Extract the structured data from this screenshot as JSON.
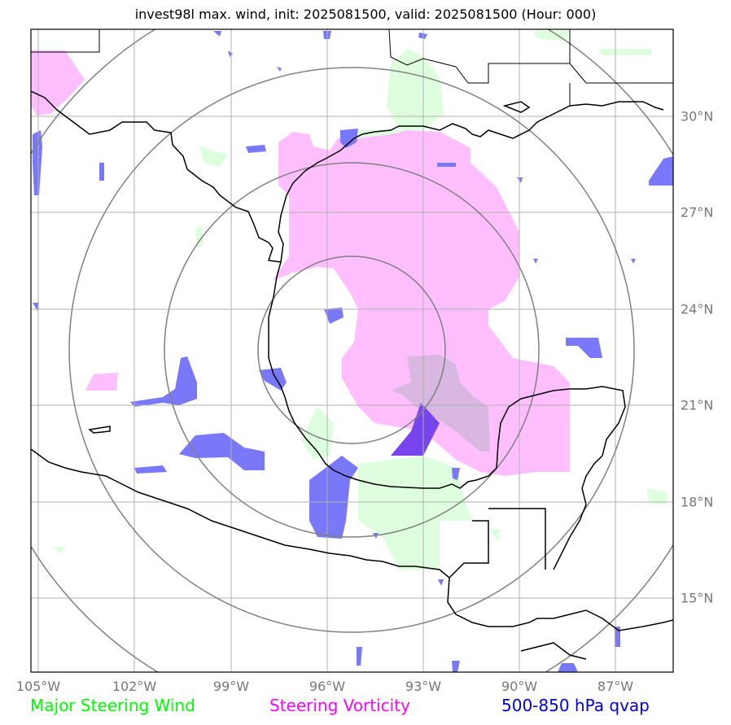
{
  "title": "invest98l max. wind, init: 2025081500, valid: 2025081500 (Hour: 000)",
  "map": {
    "lon_labels": [
      "105°W",
      "102°W",
      "99°W",
      "96°W",
      "93°W",
      "90°W",
      "87°W"
    ],
    "lat_labels": [
      "30°N",
      "27°N",
      "24°N",
      "21°N",
      "18°N",
      "15°N"
    ],
    "colors": {
      "grid": "#b0b0b0",
      "rings": "#808080",
      "coast": "#000000",
      "steering_wind": "#ddffdd",
      "steering_vorticity": "#ffbfff",
      "qvap": "#7878f8",
      "overlap": "#d8b8e0"
    }
  },
  "legend": {
    "wind": {
      "label": "Major Steering Wind",
      "color": "#00ff00"
    },
    "vorticity": {
      "label": "Steering Vorticity",
      "color": "#ff00ff"
    },
    "qvap": {
      "label": "500-850 hPa qvap",
      "color": "#0000dd"
    }
  }
}
